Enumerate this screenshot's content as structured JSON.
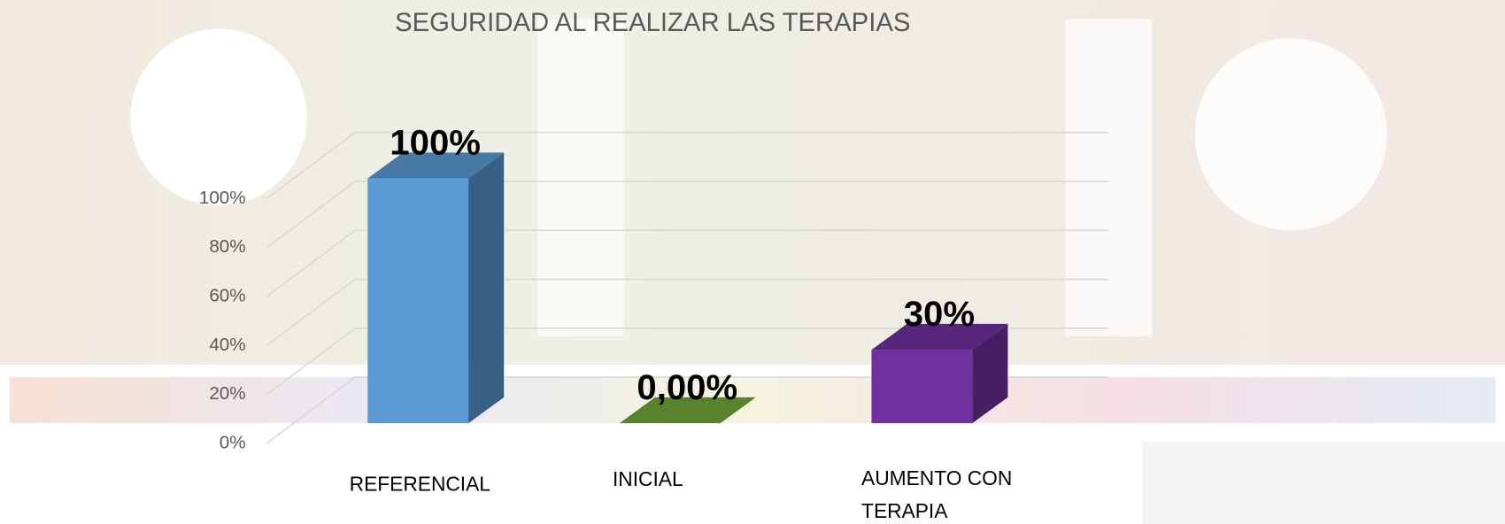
{
  "chart_data": {
    "type": "bar",
    "title": "SEGURIDAD AL REALIZAR LAS TERAPIAS",
    "categories": [
      "REFERENCIAL",
      "INICIAL",
      "AUMENTO CON TERAPIA"
    ],
    "values": [
      100,
      0,
      30
    ],
    "value_labels": [
      "100%",
      "0,00%",
      "30%"
    ],
    "colors": [
      "#5b9bd5",
      "#70a83a",
      "#7030a0"
    ],
    "ylim": [
      0,
      100
    ],
    "yticks": [
      {
        "value": 0,
        "label": "0%"
      },
      {
        "value": 20,
        "label": "20%"
      },
      {
        "value": 40,
        "label": "40%"
      },
      {
        "value": 60,
        "label": "60%"
      },
      {
        "value": 80,
        "label": "80%"
      },
      {
        "value": 100,
        "label": "100%"
      }
    ],
    "grid": true
  }
}
